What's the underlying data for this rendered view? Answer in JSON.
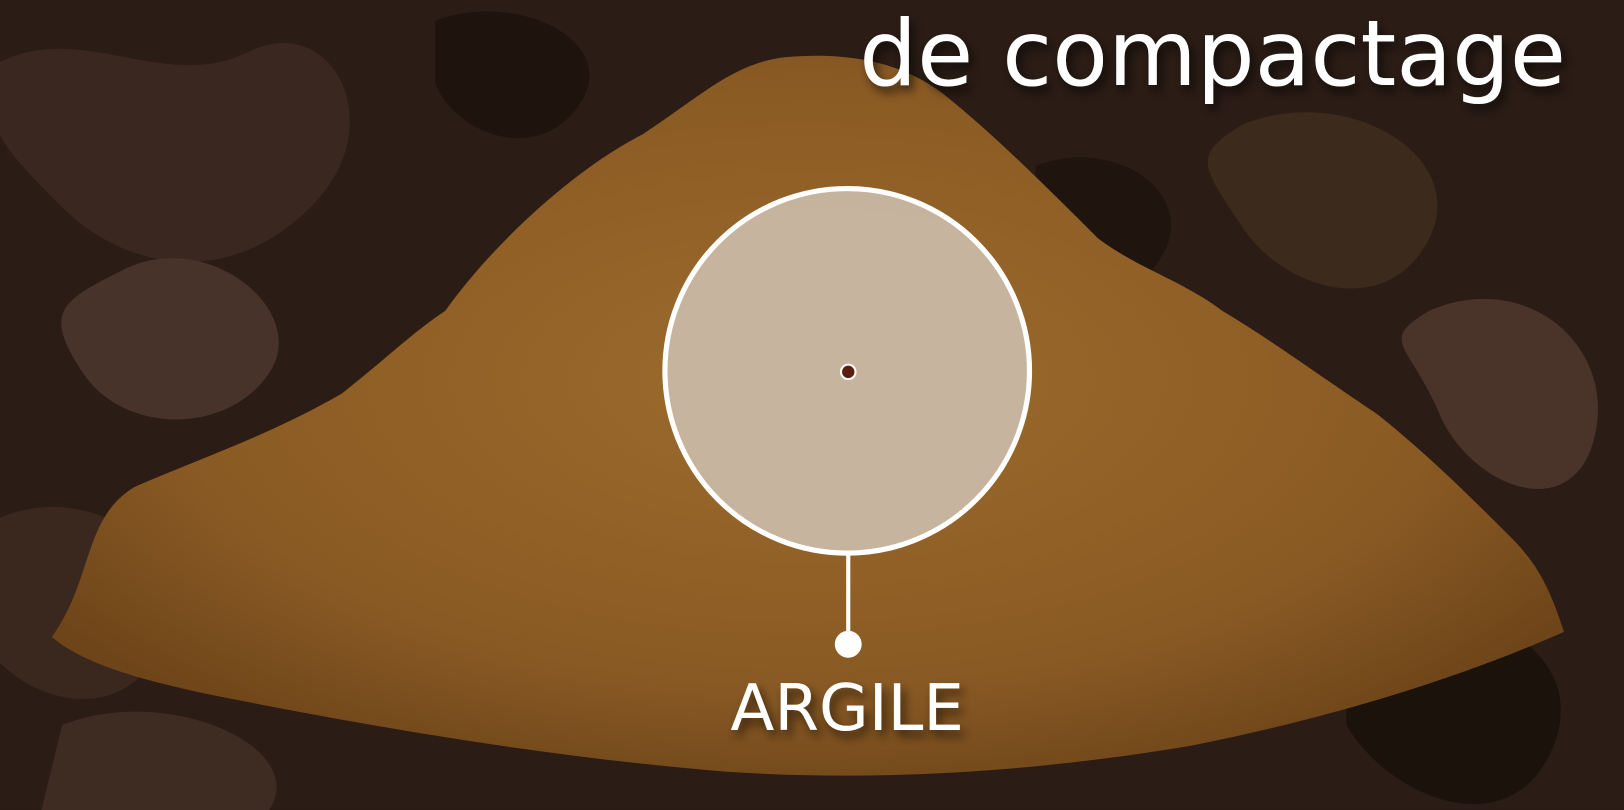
{
  "heading": "de compactage",
  "label": "ARGILE"
}
